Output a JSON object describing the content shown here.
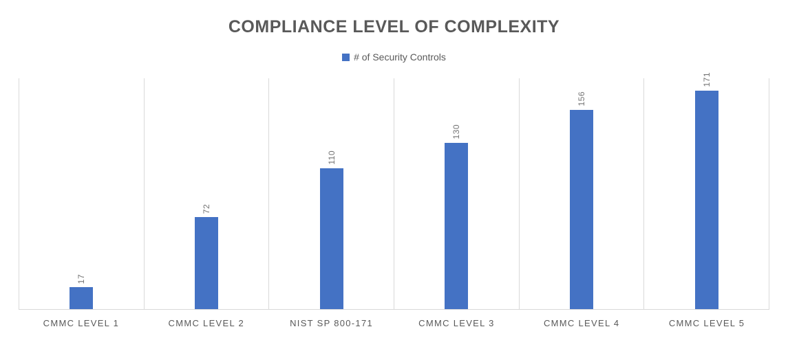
{
  "chart_data": {
    "type": "bar",
    "title": "COMPLIANCE LEVEL OF COMPLEXITY",
    "legend": "# of Security Controls",
    "legend_position": "top",
    "categories": [
      "CMMC LEVEL 1",
      "CMMC LEVEL 2",
      "NIST SP 800-171",
      "CMMC LEVEL 3",
      "CMMC LEVEL 4",
      "CMMC LEVEL 5"
    ],
    "values": [
      17,
      72,
      110,
      130,
      156,
      171
    ],
    "xlabel": "",
    "ylabel": "",
    "ylim": [
      0,
      180
    ],
    "grid": "vertical category separators only, no horizontal gridlines, no y-axis tick labels",
    "data_labels": "values shown above bars, rotated 90 degrees counterclockwise",
    "colors": {
      "bar": "#4472C4",
      "title_text": "#595959",
      "legend_text": "#595959",
      "axis_text": "#595959",
      "data_label_text": "#737373",
      "gridline": "#D9D9D9",
      "background": "#FFFFFF"
    }
  }
}
